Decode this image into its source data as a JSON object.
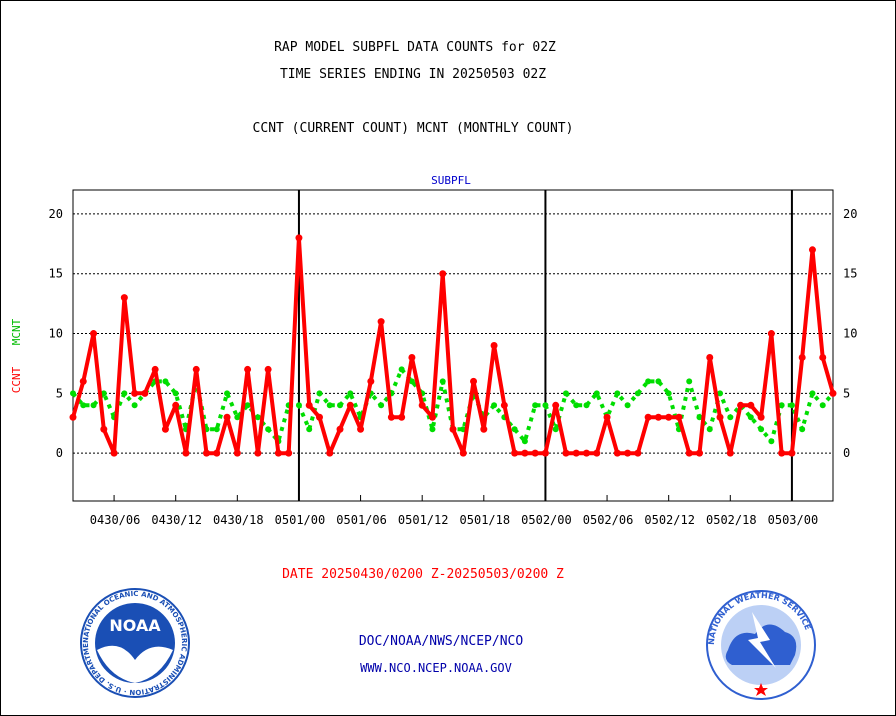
{
  "header": {
    "title_line1": "RAP MODEL SUBPFL DATA COUNTS for 02Z",
    "title_line2": "TIME SERIES ENDING IN 20250503 02Z",
    "subtitle": "CCNT (CURRENT COUNT) MCNT (MONTHLY COUNT)"
  },
  "footer": {
    "date_range": "DATE 20250430/0200 Z-20250503/0200 Z",
    "org_line": "DOC/NOAA/NWS/NCEP/NCO",
    "url_line": "WWW.NCO.NCEP.NOAA.GOV",
    "noaa_logo_text": "NOAA",
    "noaa_ring_text": "NATIONAL OCEANIC AND ATMOSPHERIC ADMINISTRATION · U.S. DEPARTMENT OF COMMERCE",
    "nws_ring_text": "NATIONAL WEATHER SERVICE"
  },
  "colors": {
    "ccnt": "#ff0000",
    "mcnt": "#00dd00",
    "panel_title": "#0000cc",
    "footer_blue": "#0000aa",
    "date_red": "#ff0000",
    "noaa_blue": "#1a4fb5",
    "nws_blue": "#2f5fd0"
  },
  "chart_data": {
    "type": "line",
    "title": "SUBPFL",
    "ylabel_series": [
      {
        "name": "CCNT",
        "color": "#ff0000"
      },
      {
        "name": "MCNT",
        "color": "#00dd00"
      }
    ],
    "xlabel": "",
    "ylim": [
      -4,
      22
    ],
    "yticks": [
      0,
      5,
      10,
      15,
      20
    ],
    "grid": true,
    "x_start": "2025-04-30 02Z",
    "x_end": "2025-05-03 02Z",
    "xticks": [
      {
        "hour": 4,
        "label": "0430/06"
      },
      {
        "hour": 10,
        "label": "0430/12"
      },
      {
        "hour": 16,
        "label": "0430/18"
      },
      {
        "hour": 22,
        "label": "0501/00"
      },
      {
        "hour": 28,
        "label": "0501/06"
      },
      {
        "hour": 34,
        "label": "0501/12"
      },
      {
        "hour": 40,
        "label": "0501/18"
      },
      {
        "hour": 46,
        "label": "0502/00"
      },
      {
        "hour": 52,
        "label": "0502/06"
      },
      {
        "hour": 58,
        "label": "0502/12"
      },
      {
        "hour": 64,
        "label": "0502/18"
      },
      {
        "hour": 70,
        "label": "0503/00"
      }
    ],
    "day_boundaries": [
      22,
      46,
      70
    ],
    "series": [
      {
        "name": "CCNT",
        "style": "solid",
        "values": [
          3,
          6,
          10,
          2,
          0,
          13,
          5,
          5,
          7,
          2,
          4,
          0,
          7,
          0,
          0,
          3,
          0,
          7,
          0,
          7,
          0,
          0,
          18,
          4,
          3,
          0,
          2,
          4,
          2,
          6,
          11,
          3,
          3,
          8,
          4,
          3,
          15,
          2,
          0,
          6,
          2,
          9,
          4,
          0,
          0,
          0,
          0,
          4,
          0,
          0,
          0,
          0,
          3,
          0,
          0,
          0,
          3,
          3,
          3,
          3,
          0,
          0,
          8,
          3,
          0,
          4,
          4,
          3,
          10,
          0,
          0,
          8,
          17,
          8,
          5
        ]
      },
      {
        "name": "MCNT",
        "style": "dotted",
        "values": [
          5,
          4,
          4,
          5,
          3,
          5,
          4,
          5,
          6,
          6,
          5,
          2,
          6,
          2,
          2,
          5,
          3,
          4,
          3,
          2,
          1,
          4,
          4,
          2,
          5,
          4,
          4,
          5,
          3,
          5,
          4,
          5,
          7,
          6,
          5,
          2,
          6,
          2,
          2,
          5,
          3,
          4,
          3,
          2,
          1,
          4,
          4,
          2,
          5,
          4,
          4,
          5,
          3,
          5,
          4,
          5,
          6,
          6,
          5,
          2,
          6,
          3,
          2,
          5,
          3,
          4,
          3,
          2,
          1,
          4,
          4,
          2,
          5,
          4,
          5
        ]
      }
    ]
  }
}
